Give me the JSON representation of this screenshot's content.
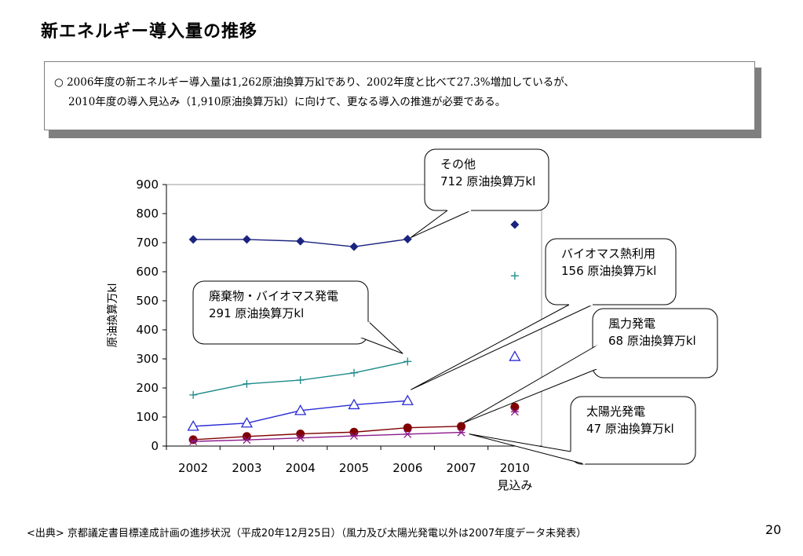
{
  "page": {
    "title": "新エネルギー導入量の推移",
    "summary_line1": "○ 2006年度の新エネルギー導入量は1,262原油換算万klであり、2002年度と比べて27.3%増加しているが、",
    "summary_line2": "2010年度の導入見込み（1,910原油換算万kl）に向けて、更なる導入の推進が必要である。",
    "source": "<出典>  京都議定書目標達成計画の進捗状況（平成20年12月25日）（風力及び太陽光発電以外は2007年度データ未発表）",
    "page_number": "20"
  },
  "chart_data": {
    "type": "line",
    "categories": [
      "2002",
      "2003",
      "2004",
      "2005",
      "2006",
      "2007",
      "2010"
    ],
    "x_sublabels": [
      "",
      "",
      "",
      "",
      "",
      "",
      "見込み"
    ],
    "ylabel": "原油換算万kl",
    "ylim": [
      0,
      900
    ],
    "yticks": [
      0,
      100,
      200,
      300,
      400,
      500,
      600,
      700,
      800,
      900
    ],
    "grid": false,
    "series": [
      {
        "name": "その他",
        "marker": "diamond",
        "color": "#1a237e",
        "values": [
          711,
          711,
          705,
          686,
          712,
          null,
          762
        ]
      },
      {
        "name": "廃棄物・バイオマス発電",
        "marker": "plus",
        "color": "#1e8a8a",
        "values": [
          176,
          214,
          227,
          252,
          291,
          null,
          586
        ]
      },
      {
        "name": "バイオマス熱利用",
        "marker": "triangle",
        "color": "#2b2bd6",
        "values": [
          68,
          79,
          122,
          142,
          156,
          null,
          308
        ]
      },
      {
        "name": "風力発電",
        "marker": "circle",
        "color": "#800000",
        "values": [
          22,
          33,
          42,
          48,
          63,
          68,
          134
        ]
      },
      {
        "name": "太陽光発電",
        "marker": "star",
        "color": "#8b1a8b",
        "values": [
          16,
          21,
          28,
          35,
          41,
          47,
          118
        ]
      }
    ],
    "callouts": [
      {
        "line1": "その他",
        "line2": "712 原油換算万kl"
      },
      {
        "line1": "廃棄物・バイオマス発電",
        "line2": "291 原油換算万kl"
      },
      {
        "line1": "バイオマス熱利用",
        "line2": "156 原油換算万kl"
      },
      {
        "line1": "風力発電",
        "line2": "68 原油換算万kl"
      },
      {
        "line1": "太陽光発電",
        "line2": "47 原油換算万kl"
      }
    ]
  }
}
